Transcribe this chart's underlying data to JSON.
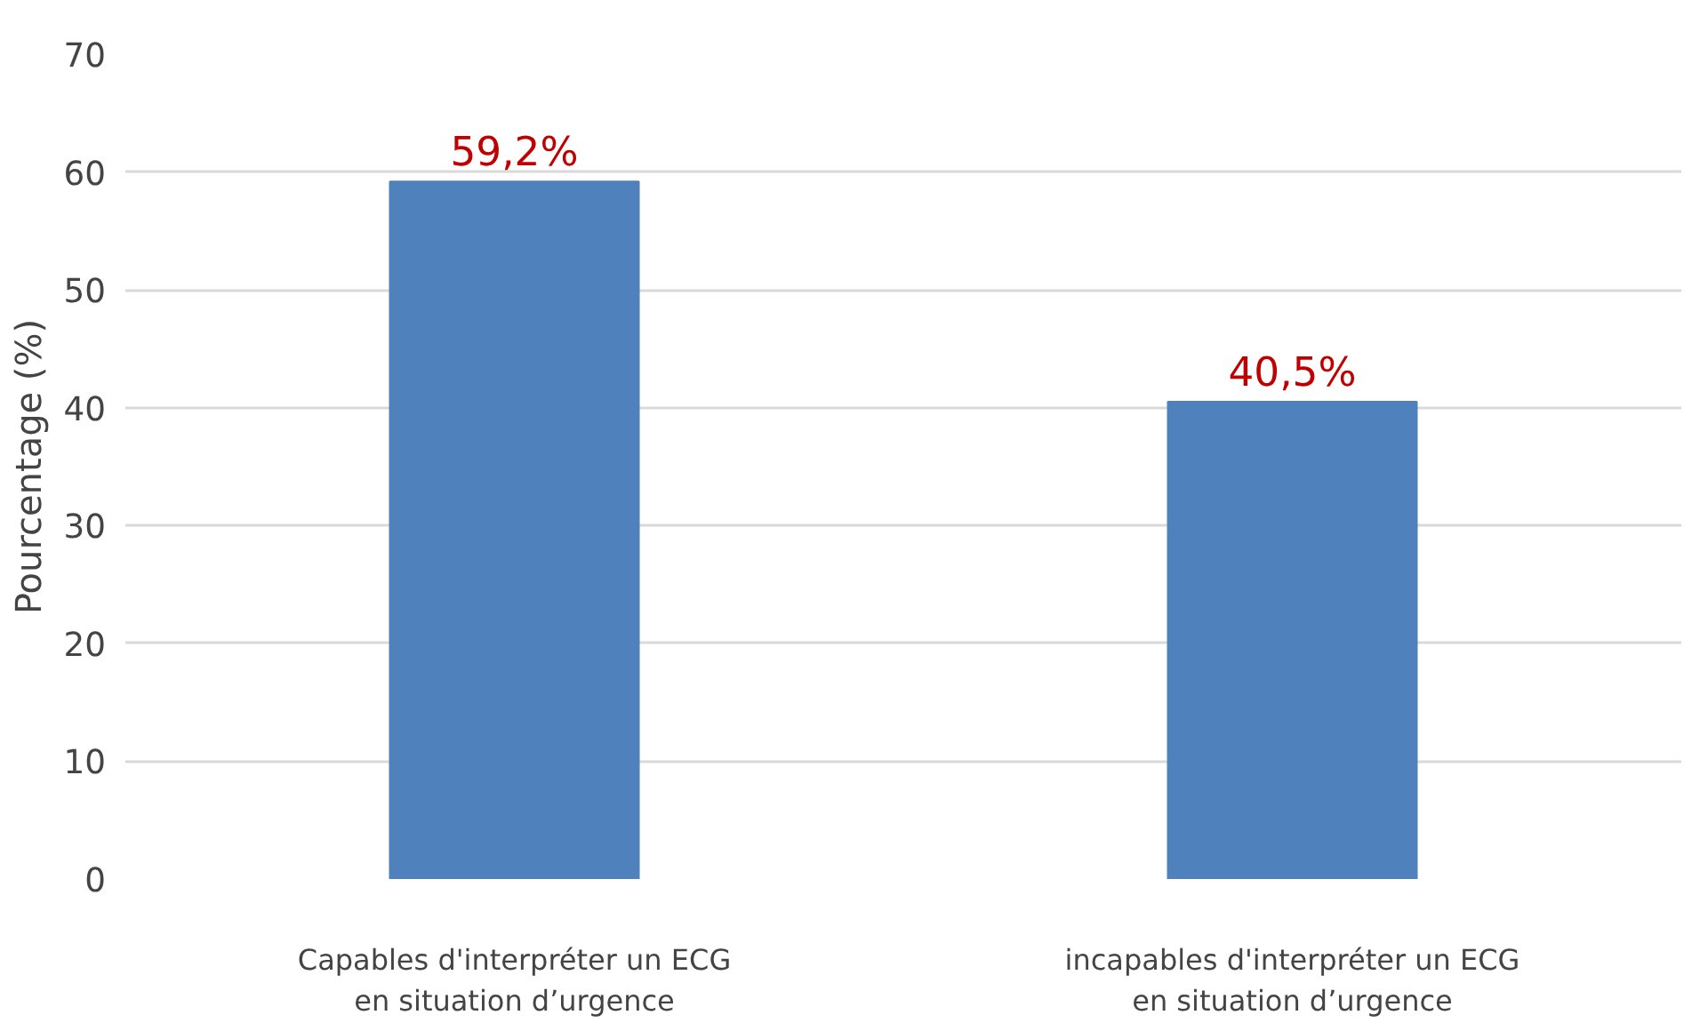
{
  "chart_data": {
    "type": "bar",
    "ylabel": "Pourcentage (%)",
    "categories": [
      "Capables d'interpréter un ECG\nen situation d’urgence",
      "incapables d'interpréter un ECG\nen situation d’urgence"
    ],
    "values": [
      59.2,
      40.5
    ],
    "color": "#4f81bd",
    "value_labels": [
      "59,2%",
      "40,5%"
    ],
    "ylim": [
      0,
      70
    ],
    "yticks": [
      0,
      10,
      20,
      30,
      40,
      50,
      60,
      70
    ],
    "grid": "y"
  }
}
